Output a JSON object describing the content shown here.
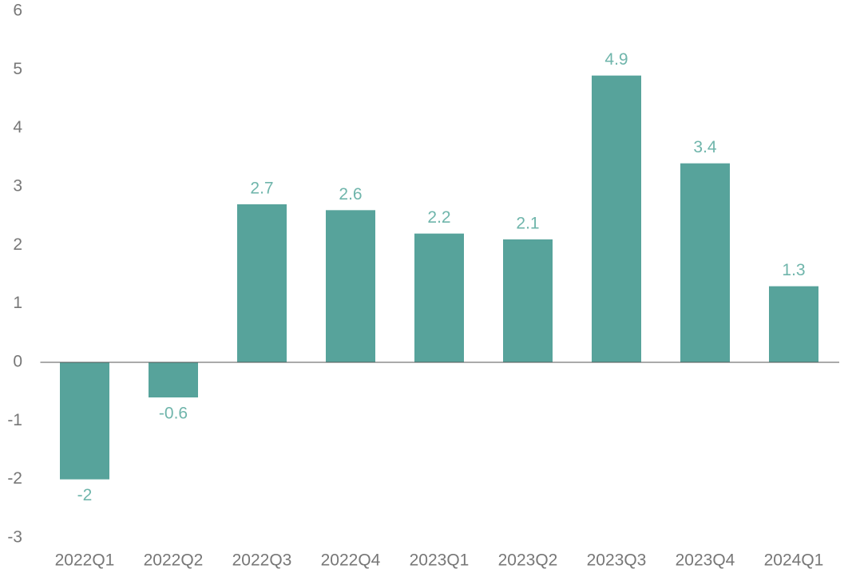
{
  "chart_data": {
    "type": "bar",
    "categories": [
      "2022Q1",
      "2022Q2",
      "2022Q3",
      "2022Q4",
      "2023Q1",
      "2023Q2",
      "2023Q3",
      "2023Q4",
      "2024Q1"
    ],
    "values": [
      -2,
      -0.6,
      2.7,
      2.6,
      2.2,
      2.1,
      4.9,
      3.4,
      1.3
    ],
    "color": "#57a39b",
    "ylim": [
      -3,
      6
    ],
    "yticks": [
      -3,
      -2,
      -1,
      0,
      1,
      2,
      3,
      4,
      5,
      6
    ],
    "grid": false
  }
}
